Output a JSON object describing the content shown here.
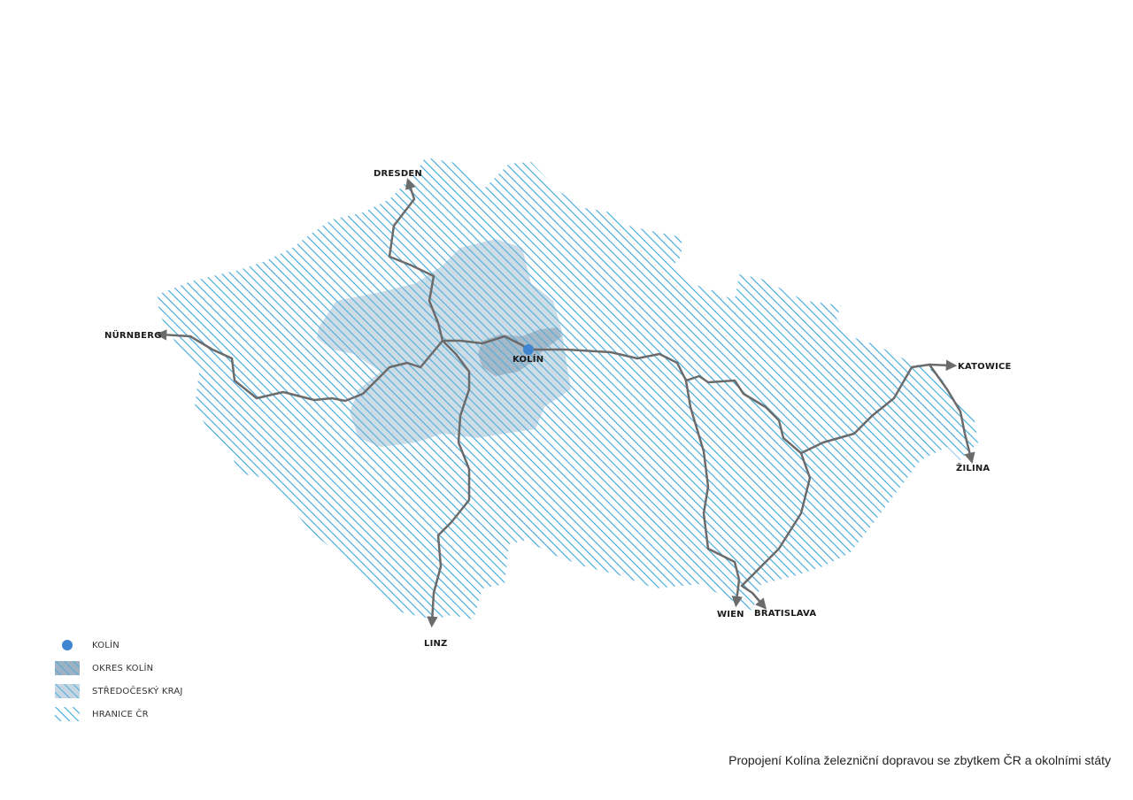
{
  "map": {
    "colors": {
      "hatch": "#3aa6dc",
      "region": "#c5d6e2",
      "district": "#9db3c3",
      "rail": "#6b6b6b",
      "kolin_dot": "#3f86d0"
    },
    "cities": {
      "dresden": "DRESDEN",
      "nurnberg": "NÜRNBERG",
      "kolin": "KOLÍN",
      "katowice": "KATOWICE",
      "zilina": "ŽILINA",
      "wien": "WIEN",
      "bratislava": "BRATISLAVA",
      "linz": "LINZ"
    }
  },
  "legend": {
    "items": [
      {
        "symbol": "dot-icon",
        "label": "KOLÍN"
      },
      {
        "symbol": "district-hatch",
        "label": "OKRES KOLÍN"
      },
      {
        "symbol": "region-hatch",
        "label": "STŘEDOČESKÝ KRAJ"
      },
      {
        "symbol": "border-hatch",
        "label": "HRANICE ČR"
      }
    ]
  },
  "caption": "Propojení Kolína železniční dopravou se zbytkem ČR a okolními státy"
}
